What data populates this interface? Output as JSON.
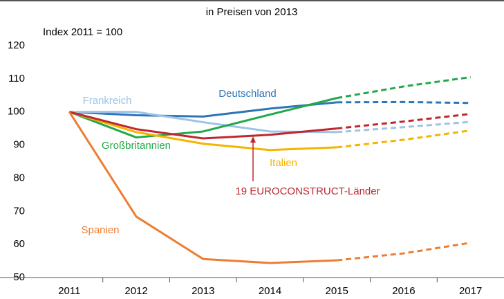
{
  "chart_data": {
    "type": "line",
    "subtitle": "in Preisen von 2013",
    "y_label": "Index 2011 = 100",
    "categories": [
      "2011",
      "2012",
      "2013",
      "2014",
      "2015",
      "2016",
      "2017"
    ],
    "projection_from": "2015",
    "ylim": [
      50,
      120
    ],
    "yticks": [
      50,
      60,
      70,
      80,
      90,
      100,
      110,
      120
    ],
    "grid": false,
    "series": [
      {
        "name": "Deutschland",
        "color": "#2e75b6",
        "values": [
          100,
          99,
          98.6,
          101,
          102.9,
          103,
          102.7
        ]
      },
      {
        "name": "Frankreich",
        "color": "#9dc3e6",
        "values": [
          100,
          100,
          96.9,
          94.1,
          93.9,
          95.4,
          97
        ]
      },
      {
        "name": "Großbritannien",
        "color": "#22a84a",
        "values": [
          100,
          92.3,
          94.1,
          99.2,
          104.2,
          107.7,
          110.5
        ]
      },
      {
        "name": "Italien",
        "color": "#f5b400",
        "values": [
          100,
          93.9,
          90.4,
          88.5,
          89.3,
          91.6,
          94.4
        ]
      },
      {
        "name": "19 EUROCONSTRUCT-Länder",
        "color": "#c0272d",
        "values": [
          100,
          94.8,
          92,
          93.1,
          95,
          97.1,
          99.4
        ]
      },
      {
        "name": "Spanien",
        "color": "#ed7d31",
        "values": [
          100,
          68.4,
          55.6,
          54.4,
          55.2,
          57.3,
          60.5
        ]
      }
    ]
  }
}
